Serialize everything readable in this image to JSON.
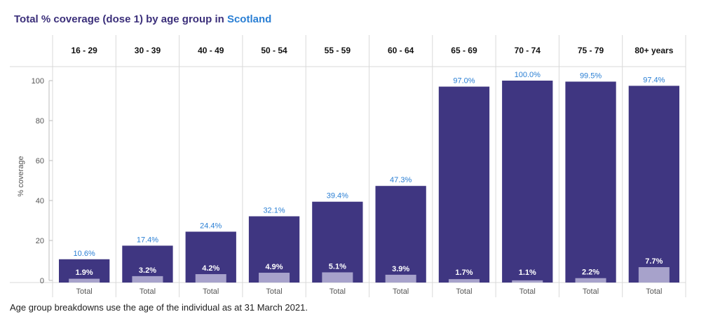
{
  "title": {
    "prefix": "Total % coverage (dose 1) by age group in",
    "place": "Scotland"
  },
  "footnote": "Age group breakdowns use the age of the individual as at 31 March 2021.",
  "colors": {
    "bar": "#3f3681",
    "bar_inner": "#a7a2cb",
    "label_top": "#2a7fd4",
    "label_inner": "#ffffff"
  },
  "chart_data": {
    "type": "bar",
    "title": "Total % coverage (dose 1) by age group in Scotland",
    "ylabel": "% coverage",
    "xlabel": "",
    "ylim": [
      0,
      100
    ],
    "yticks": [
      0,
      20,
      40,
      60,
      80,
      100
    ],
    "grid": false,
    "facet_label": "Total",
    "categories": [
      "16 - 29",
      "30 - 39",
      "40 - 49",
      "50 - 54",
      "55 - 59",
      "60 - 64",
      "65 - 69",
      "70 - 74",
      "75 - 79",
      "80+ years"
    ],
    "series": [
      {
        "name": "Total coverage",
        "values": [
          10.6,
          17.4,
          24.4,
          32.1,
          39.4,
          47.3,
          97.0,
          100.0,
          99.5,
          97.4
        ],
        "labels": [
          "10.6%",
          "17.4%",
          "24.4%",
          "32.1%",
          "39.4%",
          "47.3%",
          "97.0%",
          "100.0%",
          "99.5%",
          "97.4%"
        ]
      },
      {
        "name": "Inner value",
        "values": [
          1.9,
          3.2,
          4.2,
          4.9,
          5.1,
          3.9,
          1.7,
          1.1,
          2.2,
          7.7
        ],
        "labels": [
          "1.9%",
          "3.2%",
          "4.2%",
          "4.9%",
          "5.1%",
          "3.9%",
          "1.7%",
          "1.1%",
          "2.2%",
          "7.7%"
        ]
      }
    ]
  }
}
